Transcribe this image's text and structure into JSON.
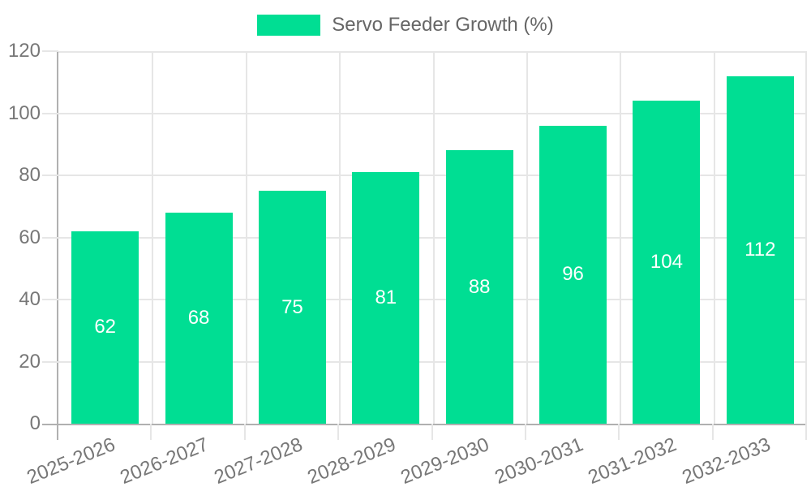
{
  "chart_data": {
    "type": "bar",
    "title": "",
    "legend": {
      "label": "Servo Feeder Growth (%)",
      "position": "top"
    },
    "categories": [
      "2025-2026",
      "2026-2027",
      "2027-2028",
      "2028-2029",
      "2029-2030",
      "2030-2031",
      "2031-2032",
      "2032-2033"
    ],
    "series": [
      {
        "name": "Servo Feeder Growth (%)",
        "values": [
          62,
          68,
          75,
          81,
          88,
          96,
          104,
          112
        ]
      }
    ],
    "value_labels_visible": true,
    "xlabel": "",
    "ylabel": "",
    "ylim": [
      0,
      120
    ],
    "y_ticks": [
      0,
      20,
      40,
      60,
      80,
      100,
      120
    ],
    "grid": true,
    "colors": {
      "bar": "#00de93",
      "value_label": "#ffffff",
      "grid_line": "#e6e6e6",
      "axis_line": "#b0b0b0",
      "tick_label": "#777777",
      "legend_text": "#666666",
      "background": "#ffffff"
    }
  }
}
